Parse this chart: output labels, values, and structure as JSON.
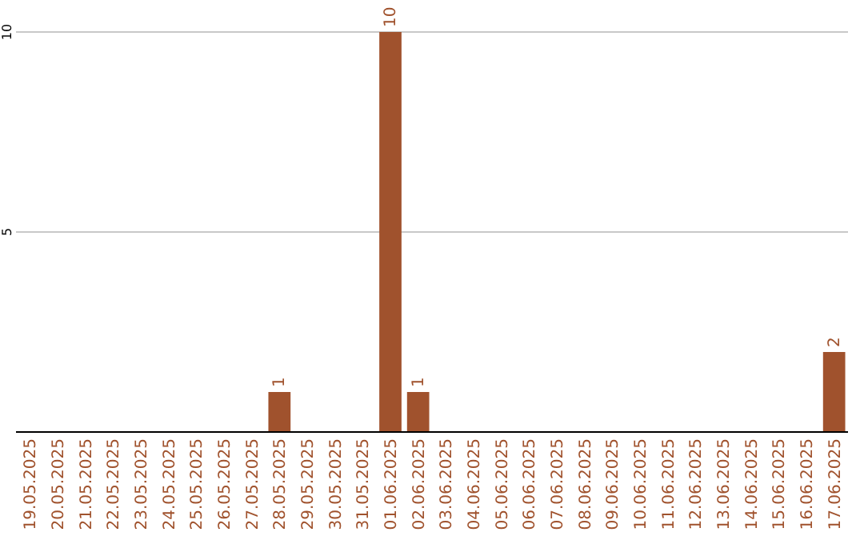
{
  "chart_data": {
    "type": "bar",
    "categories": [
      "19.05.2025",
      "20.05.2025",
      "21.05.2025",
      "22.05.2025",
      "23.05.2025",
      "24.05.2025",
      "25.05.2025",
      "26.05.2025",
      "27.05.2025",
      "28.05.2025",
      "29.05.2025",
      "30.05.2025",
      "31.05.2025",
      "01.06.2025",
      "02.06.2025",
      "03.06.2025",
      "04.06.2025",
      "05.06.2025",
      "06.06.2025",
      "07.06.2025",
      "08.06.2025",
      "09.06.2025",
      "10.06.2025",
      "11.06.2025",
      "12.06.2025",
      "13.06.2025",
      "14.06.2025",
      "15.06.2025",
      "16.06.2025",
      "17.06.2025"
    ],
    "values": [
      0,
      0,
      0,
      0,
      0,
      0,
      0,
      0,
      0,
      1,
      0,
      0,
      0,
      10,
      1,
      0,
      0,
      0,
      0,
      0,
      0,
      0,
      0,
      0,
      0,
      0,
      0,
      0,
      0,
      2
    ],
    "value_labels": [
      null,
      null,
      null,
      null,
      null,
      null,
      null,
      null,
      null,
      "1",
      null,
      null,
      null,
      "10",
      "1",
      null,
      null,
      null,
      null,
      null,
      null,
      null,
      null,
      null,
      null,
      null,
      null,
      null,
      null,
      "2"
    ],
    "color": "#a0522d",
    "ylim": [
      0,
      10
    ],
    "yticks": [
      5,
      10
    ],
    "grid": "y"
  }
}
